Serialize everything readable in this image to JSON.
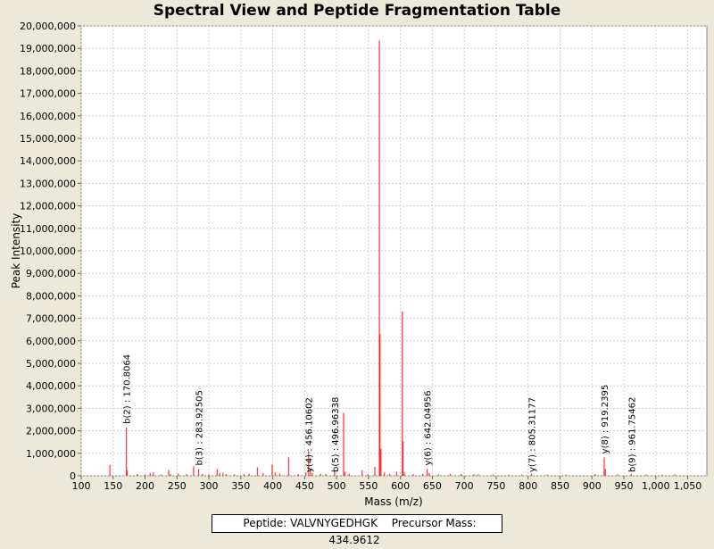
{
  "chart_data": {
    "type": "bar",
    "title": "Spectral View and Peptide Fragmentation Table",
    "xlabel": "Mass (m/z)",
    "ylabel": "Peak Intensity",
    "xlim": [
      100,
      1080
    ],
    "ylim": [
      0,
      20000000
    ],
    "x_ticks": [
      100,
      150,
      200,
      250,
      300,
      350,
      400,
      450,
      500,
      550,
      600,
      650,
      700,
      750,
      800,
      850,
      900,
      950,
      1000,
      1050
    ],
    "x_tick_labels": [
      "100",
      "150",
      "200",
      "250",
      "300",
      "350",
      "400",
      "450",
      "500",
      "550",
      "600",
      "650",
      "700",
      "750",
      "800",
      "850",
      "900",
      "950",
      "1,000",
      "1,050"
    ],
    "y_ticks": [
      0,
      1000000,
      2000000,
      3000000,
      4000000,
      5000000,
      6000000,
      7000000,
      8000000,
      9000000,
      10000000,
      11000000,
      12000000,
      13000000,
      14000000,
      15000000,
      16000000,
      17000000,
      18000000,
      19000000,
      20000000
    ],
    "y_tick_labels": [
      "0",
      "1,000,000",
      "2,000,000",
      "3,000,000",
      "4,000,000",
      "5,000,000",
      "6,000,000",
      "7,000,000",
      "8,000,000",
      "9,000,000",
      "10,000,000",
      "11,000,000",
      "12,000,000",
      "13,000,000",
      "14,000,000",
      "15,000,000",
      "16,000,000",
      "17,000,000",
      "18,000,000",
      "19,000,000",
      "20,000,000"
    ],
    "grid": true,
    "series_color": "#ff0000",
    "peaks": [
      {
        "x": 145,
        "y": 480000
      },
      {
        "x": 170.8,
        "y": 2150000
      },
      {
        "x": 172,
        "y": 250000
      },
      {
        "x": 188,
        "y": 80000
      },
      {
        "x": 200,
        "y": 60000
      },
      {
        "x": 208,
        "y": 120000
      },
      {
        "x": 213,
        "y": 150000
      },
      {
        "x": 225,
        "y": 50000
      },
      {
        "x": 237,
        "y": 260000
      },
      {
        "x": 240,
        "y": 70000
      },
      {
        "x": 252,
        "y": 100000
      },
      {
        "x": 265,
        "y": 80000
      },
      {
        "x": 276,
        "y": 420000
      },
      {
        "x": 283.9,
        "y": 300000
      },
      {
        "x": 290,
        "y": 90000
      },
      {
        "x": 300,
        "y": 60000
      },
      {
        "x": 313,
        "y": 300000
      },
      {
        "x": 317,
        "y": 120000
      },
      {
        "x": 322,
        "y": 130000
      },
      {
        "x": 327,
        "y": 80000
      },
      {
        "x": 340,
        "y": 60000
      },
      {
        "x": 355,
        "y": 70000
      },
      {
        "x": 363,
        "y": 90000
      },
      {
        "x": 376,
        "y": 380000
      },
      {
        "x": 385,
        "y": 120000
      },
      {
        "x": 399,
        "y": 500000
      },
      {
        "x": 404,
        "y": 140000
      },
      {
        "x": 411,
        "y": 100000
      },
      {
        "x": 425,
        "y": 820000
      },
      {
        "x": 440,
        "y": 80000
      },
      {
        "x": 452,
        "y": 150000
      },
      {
        "x": 456.1,
        "y": 1100000
      },
      {
        "x": 459,
        "y": 300000
      },
      {
        "x": 462,
        "y": 120000
      },
      {
        "x": 475,
        "y": 90000
      },
      {
        "x": 483,
        "y": 80000
      },
      {
        "x": 496.9,
        "y": 200000
      },
      {
        "x": 511,
        "y": 2800000
      },
      {
        "x": 513,
        "y": 180000
      },
      {
        "x": 520,
        "y": 100000
      },
      {
        "x": 540,
        "y": 250000
      },
      {
        "x": 549,
        "y": 80000
      },
      {
        "x": 560,
        "y": 400000
      },
      {
        "x": 567,
        "y": 19350000
      },
      {
        "x": 568,
        "y": 6300000
      },
      {
        "x": 569.5,
        "y": 1200000
      },
      {
        "x": 575,
        "y": 150000
      },
      {
        "x": 583,
        "y": 90000
      },
      {
        "x": 594,
        "y": 180000
      },
      {
        "x": 603,
        "y": 7300000
      },
      {
        "x": 604,
        "y": 1550000
      },
      {
        "x": 606,
        "y": 150000
      },
      {
        "x": 620,
        "y": 80000
      },
      {
        "x": 635,
        "y": 90000
      },
      {
        "x": 642.0,
        "y": 300000
      },
      {
        "x": 645,
        "y": 120000
      },
      {
        "x": 660,
        "y": 60000
      },
      {
        "x": 678,
        "y": 90000
      },
      {
        "x": 695,
        "y": 80000
      },
      {
        "x": 715,
        "y": 70000
      },
      {
        "x": 722,
        "y": 60000
      },
      {
        "x": 745,
        "y": 60000
      },
      {
        "x": 770,
        "y": 50000
      },
      {
        "x": 790,
        "y": 60000
      },
      {
        "x": 805.3,
        "y": 100000
      },
      {
        "x": 830,
        "y": 50000
      },
      {
        "x": 860,
        "y": 50000
      },
      {
        "x": 905,
        "y": 80000
      },
      {
        "x": 919.2,
        "y": 820000
      },
      {
        "x": 921,
        "y": 300000
      },
      {
        "x": 940,
        "y": 60000
      },
      {
        "x": 961.8,
        "y": 80000
      },
      {
        "x": 985,
        "y": 50000
      },
      {
        "x": 1010,
        "y": 50000
      },
      {
        "x": 1030,
        "y": 60000
      }
    ],
    "annotations": [
      {
        "x": 170.8,
        "y": 2150000,
        "label": "b(2) : 170.8064"
      },
      {
        "x": 283.9,
        "y": 300000,
        "label": "b(3) : 283.92505"
      },
      {
        "x": 456.1,
        "y": 0,
        "label": "y(4) : 456.10602"
      },
      {
        "x": 496.9,
        "y": 0,
        "label": "b(5) : 496.96338"
      },
      {
        "x": 642.0,
        "y": 300000,
        "label": "y(6) : 642.04956"
      },
      {
        "x": 805.3,
        "y": 0,
        "label": "y(7) : 805.31177"
      },
      {
        "x": 919.2,
        "y": 820000,
        "label": "y(8) : 919.2395"
      },
      {
        "x": 961.8,
        "y": 0,
        "label": "b(9) : 961.75462"
      }
    ]
  },
  "footer": {
    "peptide": "Peptide: VALVNYGEDHGK",
    "precursor": "Precursor Mass: 434.9612"
  }
}
